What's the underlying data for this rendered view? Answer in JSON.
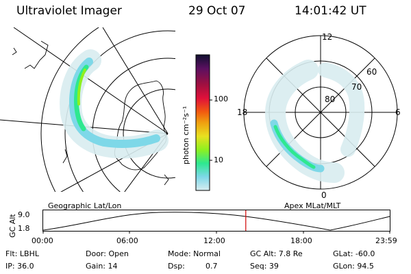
{
  "header": {
    "instrument": "Ultraviolet Imager",
    "date": "29 Oct 07",
    "time": "14:01:42 UT"
  },
  "panels": {
    "left_label": "Geographic Lat/Lon",
    "right_label": "Apex MLat/MLT"
  },
  "colorbar": {
    "unit_label": "photon cm⁻²s⁻¹",
    "tick_100": "100",
    "tick_10": "10",
    "colors": [
      "#101030",
      "#5a1060",
      "#a01040",
      "#e0103a",
      "#f25a10",
      "#f0a010",
      "#e8e020",
      "#8ef020",
      "#2ee890",
      "#7ed8e8",
      "#d8ecf0"
    ]
  },
  "polar": {
    "lat_labels": [
      "80",
      "70",
      "60"
    ],
    "mlt_labels": [
      "12",
      "18",
      "6",
      "0"
    ]
  },
  "altitude_plot": {
    "axis_label": "GC Alt",
    "y_labels": [
      "9.0",
      "1.8"
    ],
    "x_labels": [
      "00:00",
      "06:00",
      "12:00",
      "18:00",
      "23:59"
    ],
    "current_time_hours": 14.03,
    "marker_color": "#d00000"
  },
  "status": {
    "filter": "Flt: LBHL",
    "ip": "IP: 36.0",
    "door": "Door: Open",
    "gain": "Gain: 14",
    "mode": "Mode: Normal",
    "dsp_label": "Dsp:",
    "dsp_value": "0.7",
    "gc_alt": "GC Alt: 7.8 Re",
    "seq": "Seq: 39",
    "glat": "GLat: -60.0",
    "glon": "GLon: 94.5"
  }
}
